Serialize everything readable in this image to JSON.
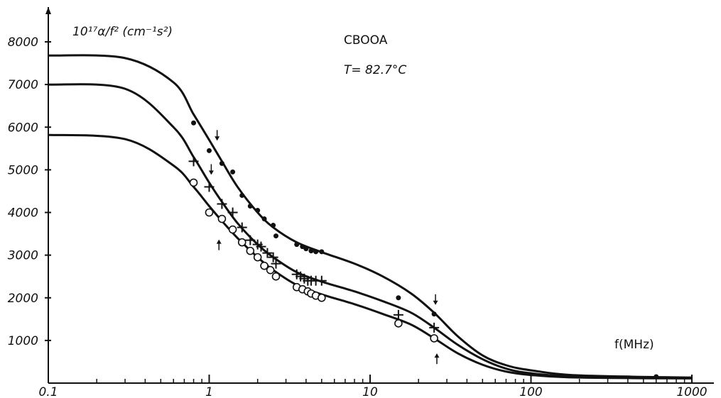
{
  "chart_data": {
    "type": "line",
    "title": "",
    "xlabel": "f(MHz)",
    "ylabel": "10¹⁷α/f² (cm⁻¹s²)",
    "annotations": [
      "CBOOA",
      "T= 82.7°C"
    ],
    "x_scale": "log",
    "xlim": [
      0.1,
      1000
    ],
    "ylim": [
      0,
      8000
    ],
    "x_ticks": [
      "0.1",
      "1",
      "10",
      "100",
      "1000"
    ],
    "y_ticks": [
      "1000",
      "2000",
      "3000",
      "4000",
      "5000",
      "6000",
      "7000",
      "8000"
    ],
    "grid": false,
    "series": [
      {
        "marker": "dot",
        "curve_x": [
          0.1,
          0.3,
          0.6,
          0.8,
          1,
          1.2,
          1.5,
          2,
          2.5,
          3.5,
          5,
          8,
          12,
          18,
          25,
          35,
          50,
          70,
          100,
          200,
          1000
        ],
        "curve_y": [
          7680,
          7620,
          7050,
          6300,
          5700,
          5200,
          4600,
          4000,
          3650,
          3300,
          3070,
          2800,
          2500,
          2100,
          1650,
          1100,
          650,
          420,
          300,
          180,
          130
        ],
        "points_x": [
          0.8,
          1,
          1.2,
          1.4,
          1.6,
          1.8,
          2,
          2.2,
          2.5,
          2.6,
          3.5,
          3.8,
          4,
          4.3,
          4.6,
          5,
          15,
          25,
          600
        ],
        "points_y": [
          6100,
          5450,
          5150,
          4950,
          4400,
          4150,
          4050,
          3850,
          3700,
          3450,
          3250,
          3200,
          3150,
          3100,
          3080,
          3080,
          2000,
          1620,
          150
        ]
      },
      {
        "marker": "cross",
        "curve_x": [
          0.1,
          0.3,
          0.6,
          0.8,
          1,
          1.2,
          1.5,
          2,
          2.5,
          3.5,
          5,
          8,
          12,
          18,
          25,
          35,
          50,
          70,
          100,
          200,
          1000
        ],
        "curve_y": [
          7000,
          6900,
          6000,
          5300,
          4700,
          4250,
          3750,
          3250,
          2950,
          2600,
          2380,
          2150,
          1920,
          1650,
          1300,
          900,
          560,
          340,
          230,
          150,
          120
        ],
        "points_x": [
          0.8,
          1,
          1.2,
          1.4,
          1.6,
          1.8,
          2,
          2.1,
          2.3,
          2.5,
          2.6,
          3.5,
          3.7,
          3.9,
          4.1,
          4.3,
          4.6,
          5,
          15,
          25
        ],
        "points_y": [
          5200,
          4600,
          4200,
          4000,
          3650,
          3350,
          3250,
          3200,
          3050,
          2950,
          2800,
          2550,
          2500,
          2450,
          2400,
          2400,
          2400,
          2400,
          1600,
          1300
        ]
      },
      {
        "marker": "circle",
        "curve_x": [
          0.1,
          0.3,
          0.6,
          0.8,
          1,
          1.2,
          1.5,
          2,
          2.5,
          3.5,
          5,
          8,
          12,
          18,
          25,
          35,
          50,
          70,
          100,
          200,
          1000
        ],
        "curve_y": [
          5820,
          5720,
          5100,
          4600,
          4150,
          3800,
          3400,
          2950,
          2650,
          2300,
          2080,
          1850,
          1620,
          1370,
          1050,
          700,
          430,
          270,
          190,
          130,
          110
        ],
        "points_x": [
          0.8,
          1,
          1.2,
          1.4,
          1.6,
          1.8,
          2,
          2.2,
          2.4,
          2.6,
          3.5,
          3.8,
          4.1,
          4.3,
          4.6,
          5,
          15,
          25
        ],
        "points_y": [
          4700,
          4000,
          3850,
          3600,
          3300,
          3100,
          2950,
          2750,
          2650,
          2500,
          2250,
          2200,
          2150,
          2100,
          2050,
          2000,
          1400,
          1050
        ]
      }
    ],
    "arrows": [
      {
        "x": 1.12,
        "y": 5700,
        "direction": "down"
      },
      {
        "x": 1.03,
        "y": 4900,
        "direction": "down"
      },
      {
        "x": 1.15,
        "y": 3350,
        "direction": "up"
      },
      {
        "x": 25.5,
        "y": 1850,
        "direction": "down"
      },
      {
        "x": 26,
        "y": 680,
        "direction": "up"
      }
    ]
  }
}
